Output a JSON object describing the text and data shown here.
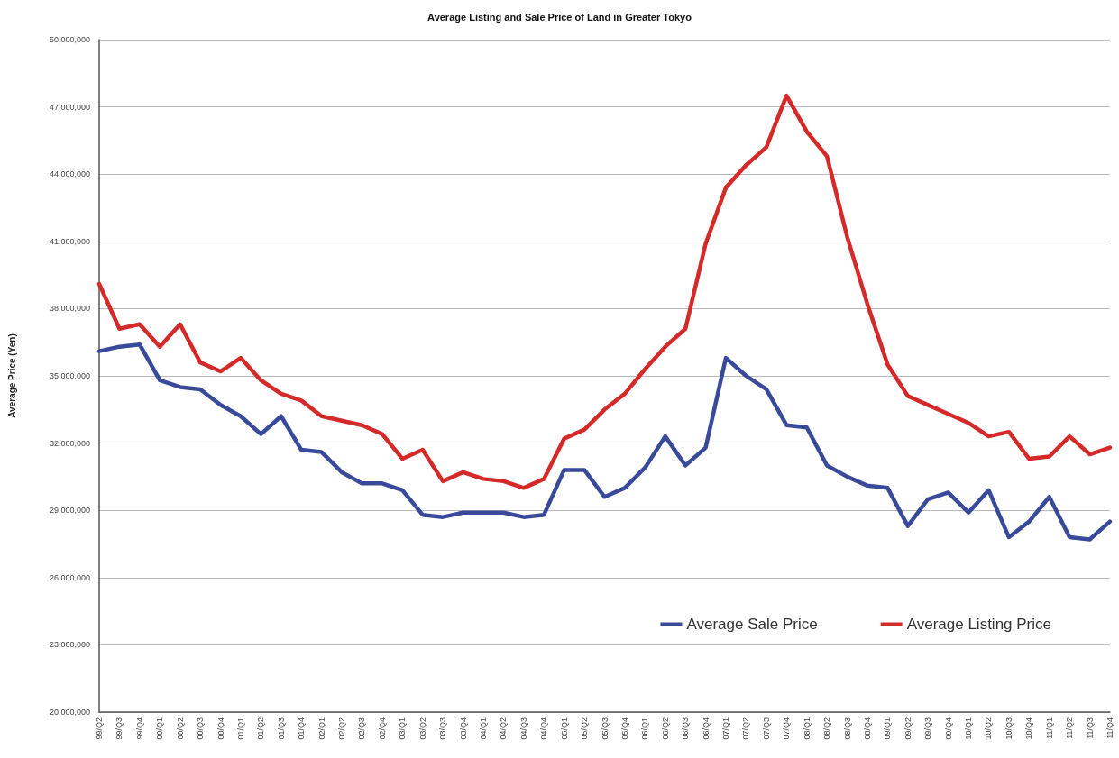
{
  "chart_data": {
    "type": "line",
    "title": "Average Listing and Sale Price of Land in Greater Tokyo",
    "ylabel": "Average Price (Yen)",
    "categories": [
      "99/Q2",
      "99/Q3",
      "99/Q4",
      "00/Q1",
      "00/Q2",
      "00/Q3",
      "00/Q4",
      "01/Q1",
      "01/Q2",
      "01/Q3",
      "01/Q4",
      "02/Q1",
      "02/Q2",
      "02/Q3",
      "02/Q4",
      "03/Q1",
      "03/Q2",
      "03/Q3",
      "03/Q4",
      "04/Q1",
      "04/Q2",
      "04/Q3",
      "04/Q4",
      "05/Q1",
      "05/Q2",
      "05/Q3",
      "05/Q4",
      "06/Q1",
      "06/Q2",
      "06/Q3",
      "06/Q4",
      "07/Q1",
      "07/Q2",
      "07/Q3",
      "07/Q4",
      "08/Q1",
      "08/Q2",
      "08/Q3",
      "08/Q4",
      "09/Q1",
      "09/Q2",
      "09/Q3",
      "09/Q4",
      "10/Q1",
      "10/Q2",
      "10/Q3",
      "10/Q4",
      "11/Q1",
      "11/Q2",
      "11/Q3",
      "11/Q4"
    ],
    "series": [
      {
        "name": "Average Sale Price",
        "color": "#3a4a9a",
        "values": [
          36100000,
          36300000,
          36400000,
          34800000,
          34500000,
          34400000,
          33700000,
          33200000,
          32400000,
          33200000,
          31700000,
          31600000,
          30700000,
          30200000,
          30200000,
          29900000,
          28800000,
          28700000,
          28900000,
          28900000,
          28900000,
          28700000,
          28800000,
          30800000,
          30800000,
          29600000,
          30000000,
          30900000,
          32300000,
          31000000,
          31800000,
          35800000,
          35000000,
          34400000,
          32800000,
          32700000,
          31000000,
          30500000,
          30100000,
          30000000,
          28300000,
          29500000,
          29800000,
          28900000,
          29900000,
          27800000,
          28500000,
          29600000,
          27800000,
          27700000,
          28500000
        ]
      },
      {
        "name": "Average Listing Price",
        "color": "#d42a2a",
        "values": [
          39100000,
          37100000,
          37300000,
          36300000,
          37300000,
          35600000,
          35200000,
          35800000,
          34800000,
          34200000,
          33900000,
          33200000,
          33000000,
          32800000,
          32400000,
          31300000,
          31700000,
          30300000,
          30700000,
          30400000,
          30300000,
          30000000,
          30400000,
          32200000,
          32600000,
          33500000,
          34200000,
          35300000,
          36300000,
          37100000,
          40900000,
          43400000,
          44400000,
          45200000,
          47500000,
          45900000,
          44800000,
          41200000,
          38200000,
          35500000,
          34100000,
          33700000,
          33300000,
          32900000,
          32300000,
          32500000,
          31300000,
          31400000,
          32300000,
          31500000,
          31800000
        ]
      }
    ],
    "ylim": [
      20000000,
      50000000
    ],
    "yticks": [
      {
        "value": 20000000,
        "label": "20,000,000"
      },
      {
        "value": 23000000,
        "label": "23,000,000"
      },
      {
        "value": 26000000,
        "label": "26,000,000"
      },
      {
        "value": 29000000,
        "label": "29,000,000"
      },
      {
        "value": 32000000,
        "label": "32,000,000"
      },
      {
        "value": 35000000,
        "label": "35,000,000"
      },
      {
        "value": 38000000,
        "label": "38,000,000"
      },
      {
        "value": 41000000,
        "label": "41,000,000"
      },
      {
        "value": 44000000,
        "label": "44,000,000"
      },
      {
        "value": 47000000,
        "label": "47,000,000"
      },
      {
        "value": 50000000,
        "label": "50,000,000"
      }
    ],
    "grid": "y",
    "legend": "bottom right",
    "marker": "none",
    "line_style": "solid"
  }
}
